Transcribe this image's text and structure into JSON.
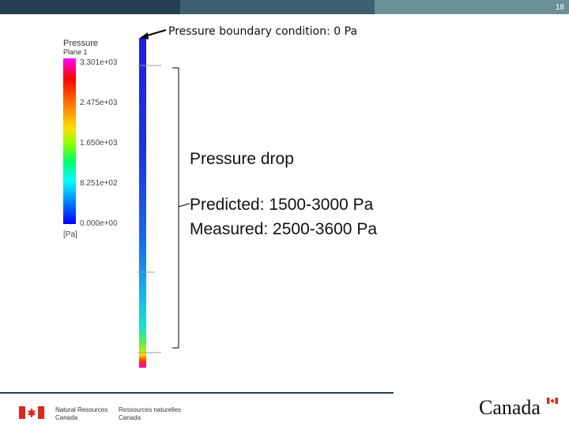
{
  "slide": {
    "number": "18"
  },
  "colorbar": {
    "title": "Pressure",
    "subtitle": "Plane 1",
    "ticks": [
      "3.301e+03",
      "2.475e+03",
      "1.650e+03",
      "8.251e+02",
      "0.000e+00"
    ],
    "unit": "[Pa]"
  },
  "annotations": {
    "boundary_label": "Pressure boundary condition: 0 Pa",
    "pressure_drop_title": "Pressure drop",
    "predicted": "Predicted: 1500-3000 Pa",
    "measured": "Measured: 2500-3600 Pa"
  },
  "footer": {
    "nrc_en_line1": "Natural Resources",
    "nrc_en_line2": "Canada",
    "nrc_fr_line1": "Ressources naturelles",
    "nrc_fr_line2": "Canada",
    "wordmark": "Canada"
  },
  "colors": {
    "header_dark": "#243f52",
    "header_mid": "#3d5f6f",
    "header_light": "#6d9199",
    "flag_red": "#d52b1e"
  }
}
